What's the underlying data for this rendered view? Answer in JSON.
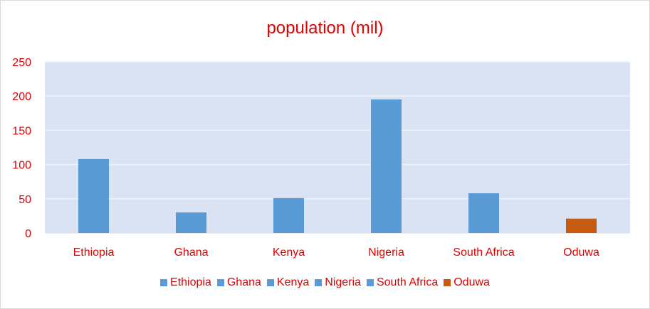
{
  "chart_data": {
    "type": "bar",
    "title": "population (mil)",
    "categories": [
      "Ethiopia",
      "Ghana",
      "Kenya",
      "Nigeria",
      "South Africa",
      "Oduwa"
    ],
    "values": [
      108,
      30,
      51,
      195,
      58,
      21
    ],
    "colors": [
      "#5b9bd5",
      "#5b9bd5",
      "#5b9bd5",
      "#5b9bd5",
      "#5b9bd5",
      "#c55a11"
    ],
    "ylim": [
      0,
      250
    ],
    "yticks": [
      0,
      50,
      100,
      150,
      200,
      250
    ],
    "grid": true,
    "legend_position": "bottom",
    "legend": [
      {
        "label": "Ethiopia",
        "color": "#5b9bd5"
      },
      {
        "label": "Ghana",
        "color": "#5b9bd5"
      },
      {
        "label": "Kenya",
        "color": "#5b9bd5"
      },
      {
        "label": "Nigeria",
        "color": "#5b9bd5"
      },
      {
        "label": "South Africa",
        "color": "#5b9bd5"
      },
      {
        "label": "Oduwa",
        "color": "#c55a11"
      }
    ],
    "plot_background": "#dae3f3",
    "text_color": "#e00000"
  }
}
